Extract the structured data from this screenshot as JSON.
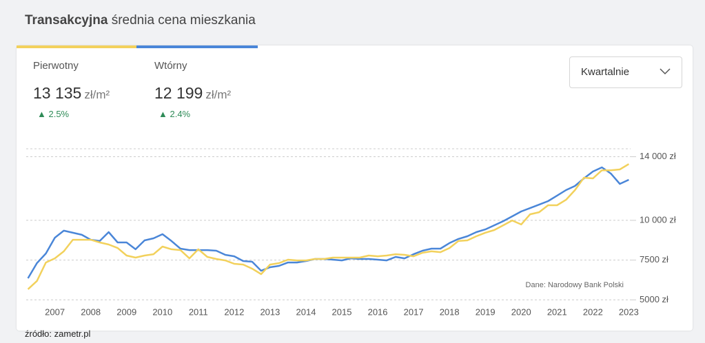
{
  "header": {
    "title_bold": "Transakcyjna",
    "title_rest": "średnia cena mieszkania"
  },
  "stats": [
    {
      "label": "Pierwotny",
      "value": "13 135",
      "unit": "zł/m²",
      "change": "2.5%"
    },
    {
      "label": "Wtórny",
      "value": "12 199",
      "unit": "zł/m²",
      "change": "2.4%"
    }
  ],
  "dropdown": "Kwartalnie",
  "source": "źródło: zametr.pl",
  "chart_data": {
    "type": "line",
    "annotation": "Dane: Narodowy Bank Polski",
    "x": [
      2006.25,
      2006.5,
      2006.75,
      2007,
      2007.25,
      2007.5,
      2007.75,
      2008,
      2008.25,
      2008.5,
      2008.75,
      2009,
      2009.25,
      2009.5,
      2009.75,
      2010,
      2010.25,
      2010.5,
      2010.75,
      2011,
      2011.25,
      2011.5,
      2011.75,
      2012,
      2012.25,
      2012.5,
      2012.75,
      2013,
      2013.25,
      2013.5,
      2013.75,
      2014,
      2014.25,
      2014.5,
      2014.75,
      2015,
      2015.25,
      2015.5,
      2015.75,
      2016,
      2016.25,
      2016.5,
      2016.75,
      2017,
      2017.25,
      2017.5,
      2017.75,
      2018,
      2018.25,
      2018.5,
      2018.75,
      2019,
      2019.25,
      2019.5,
      2019.75,
      2020,
      2020.25,
      2020.5,
      2020.75,
      2021,
      2021.25,
      2021.5,
      2021.75,
      2022,
      2022.25,
      2022.5,
      2022.75,
      2023
    ],
    "series": [
      {
        "name": "Wtórny",
        "color": "#4a86d8",
        "values": [
          6360,
          7310,
          7920,
          8910,
          9350,
          9220,
          9090,
          8780,
          8700,
          9260,
          8610,
          8610,
          8180,
          8740,
          8870,
          9130,
          8700,
          8220,
          8130,
          8130,
          8130,
          8090,
          7830,
          7740,
          7440,
          7400,
          6830,
          7050,
          7140,
          7350,
          7350,
          7440,
          7570,
          7570,
          7530,
          7480,
          7610,
          7570,
          7570,
          7530,
          7480,
          7700,
          7610,
          7870,
          8090,
          8220,
          8220,
          8570,
          8830,
          9000,
          9260,
          9430,
          9690,
          9950,
          10250,
          10560,
          10770,
          10990,
          11210,
          11550,
          11900,
          12160,
          12640,
          13070,
          13330,
          12940,
          12290,
          12550
        ]
      },
      {
        "name": "Pierwotny",
        "color": "#f2d15c",
        "values": [
          5670,
          6190,
          7350,
          7610,
          8050,
          8780,
          8780,
          8780,
          8610,
          8480,
          8260,
          7790,
          7660,
          7790,
          7870,
          8350,
          8180,
          8130,
          7610,
          8180,
          7700,
          7570,
          7480,
          7270,
          7220,
          6960,
          6620,
          7220,
          7310,
          7530,
          7480,
          7480,
          7570,
          7570,
          7660,
          7660,
          7660,
          7660,
          7790,
          7740,
          7790,
          7870,
          7830,
          7740,
          7960,
          8050,
          8000,
          8260,
          8700,
          8740,
          9000,
          9220,
          9390,
          9690,
          9990,
          9740,
          10380,
          10510,
          10950,
          10950,
          11290,
          11900,
          12680,
          12640,
          13150,
          13150,
          13200,
          13540
        ]
      }
    ],
    "xlim": [
      2006.2,
      2023.05
    ],
    "xticks": [
      2007,
      2008,
      2009,
      2010,
      2011,
      2012,
      2013,
      2014,
      2015,
      2016,
      2017,
      2018,
      2019,
      2020,
      2021,
      2022,
      2023
    ],
    "ylim": [
      4800,
      14500
    ],
    "yticks": [
      {
        "value": 5000,
        "label": "5000 zł"
      },
      {
        "value": 7500,
        "label": "7500 zł"
      },
      {
        "value": 10000,
        "label": "10 000 zł"
      },
      {
        "value": 14000,
        "label": "14 000 zł"
      }
    ],
    "grid": true
  }
}
